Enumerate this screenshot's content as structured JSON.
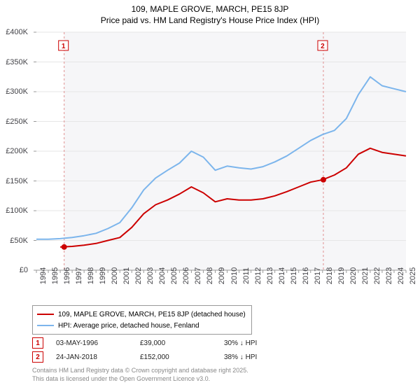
{
  "title_line1": "109, MAPLE GROVE, MARCH, PE15 8JP",
  "title_line2": "Price paid vs. HM Land Registry's House Price Index (HPI)",
  "chart": {
    "type": "line",
    "x_years": [
      1994,
      1995,
      1996,
      1997,
      1998,
      1999,
      2000,
      2001,
      2002,
      2003,
      2004,
      2005,
      2006,
      2007,
      2008,
      2009,
      2010,
      2011,
      2012,
      2013,
      2014,
      2015,
      2016,
      2017,
      2018,
      2019,
      2020,
      2021,
      2022,
      2023,
      2024,
      2025
    ],
    "ylim": [
      0,
      400000
    ],
    "ytick_step": 50000,
    "ytick_labels": [
      "£0",
      "£50K",
      "£100K",
      "£150K",
      "£200K",
      "£250K",
      "£300K",
      "£350K",
      "£400K"
    ],
    "background_color": "#ffffff",
    "plot_background_color": "#f6f6f8",
    "grid_color": "#e6e6e6",
    "axis_color": "#cccccc",
    "line_width": 2,
    "series": [
      {
        "name": "109, MAPLE GROVE, MARCH, PE15 8JP (detached house)",
        "color": "#cc0000",
        "y": [
          null,
          null,
          39000,
          40000,
          42000,
          45000,
          50000,
          55000,
          72000,
          95000,
          110000,
          118000,
          128000,
          140000,
          130000,
          115000,
          120000,
          118000,
          118000,
          120000,
          125000,
          132000,
          140000,
          148000,
          152000,
          160000,
          172000,
          195000,
          205000,
          198000,
          195000,
          192000
        ]
      },
      {
        "name": "HPI: Average price, detached house, Fenland",
        "color": "#7cb5ec",
        "y": [
          52000,
          52000,
          53000,
          55000,
          58000,
          62000,
          70000,
          80000,
          105000,
          135000,
          155000,
          168000,
          180000,
          200000,
          190000,
          168000,
          175000,
          172000,
          170000,
          174000,
          182000,
          192000,
          205000,
          218000,
          228000,
          235000,
          255000,
          295000,
          325000,
          310000,
          305000,
          300000
        ]
      }
    ],
    "sale_markers": [
      {
        "num": "1",
        "year": 1996.33,
        "value": 39000,
        "color": "#cc0000",
        "dash_color": "#e09090"
      },
      {
        "num": "2",
        "year": 2018.07,
        "value": 152000,
        "color": "#cc0000",
        "dash_color": "#e09090"
      }
    ]
  },
  "legend": [
    {
      "color": "#cc0000",
      "label": "109, MAPLE GROVE, MARCH, PE15 8JP (detached house)"
    },
    {
      "color": "#7cb5ec",
      "label": "HPI: Average price, detached house, Fenland"
    }
  ],
  "sales": [
    {
      "num": "1",
      "date": "03-MAY-1996",
      "price": "£39,000",
      "diff": "30% ↓ HPI",
      "color": "#cc0000"
    },
    {
      "num": "2",
      "date": "24-JAN-2018",
      "price": "£152,000",
      "diff": "38% ↓ HPI",
      "color": "#cc0000"
    }
  ],
  "footer_line1": "Contains HM Land Registry data © Crown copyright and database right 2025.",
  "footer_line2": "This data is licensed under the Open Government Licence v3.0."
}
